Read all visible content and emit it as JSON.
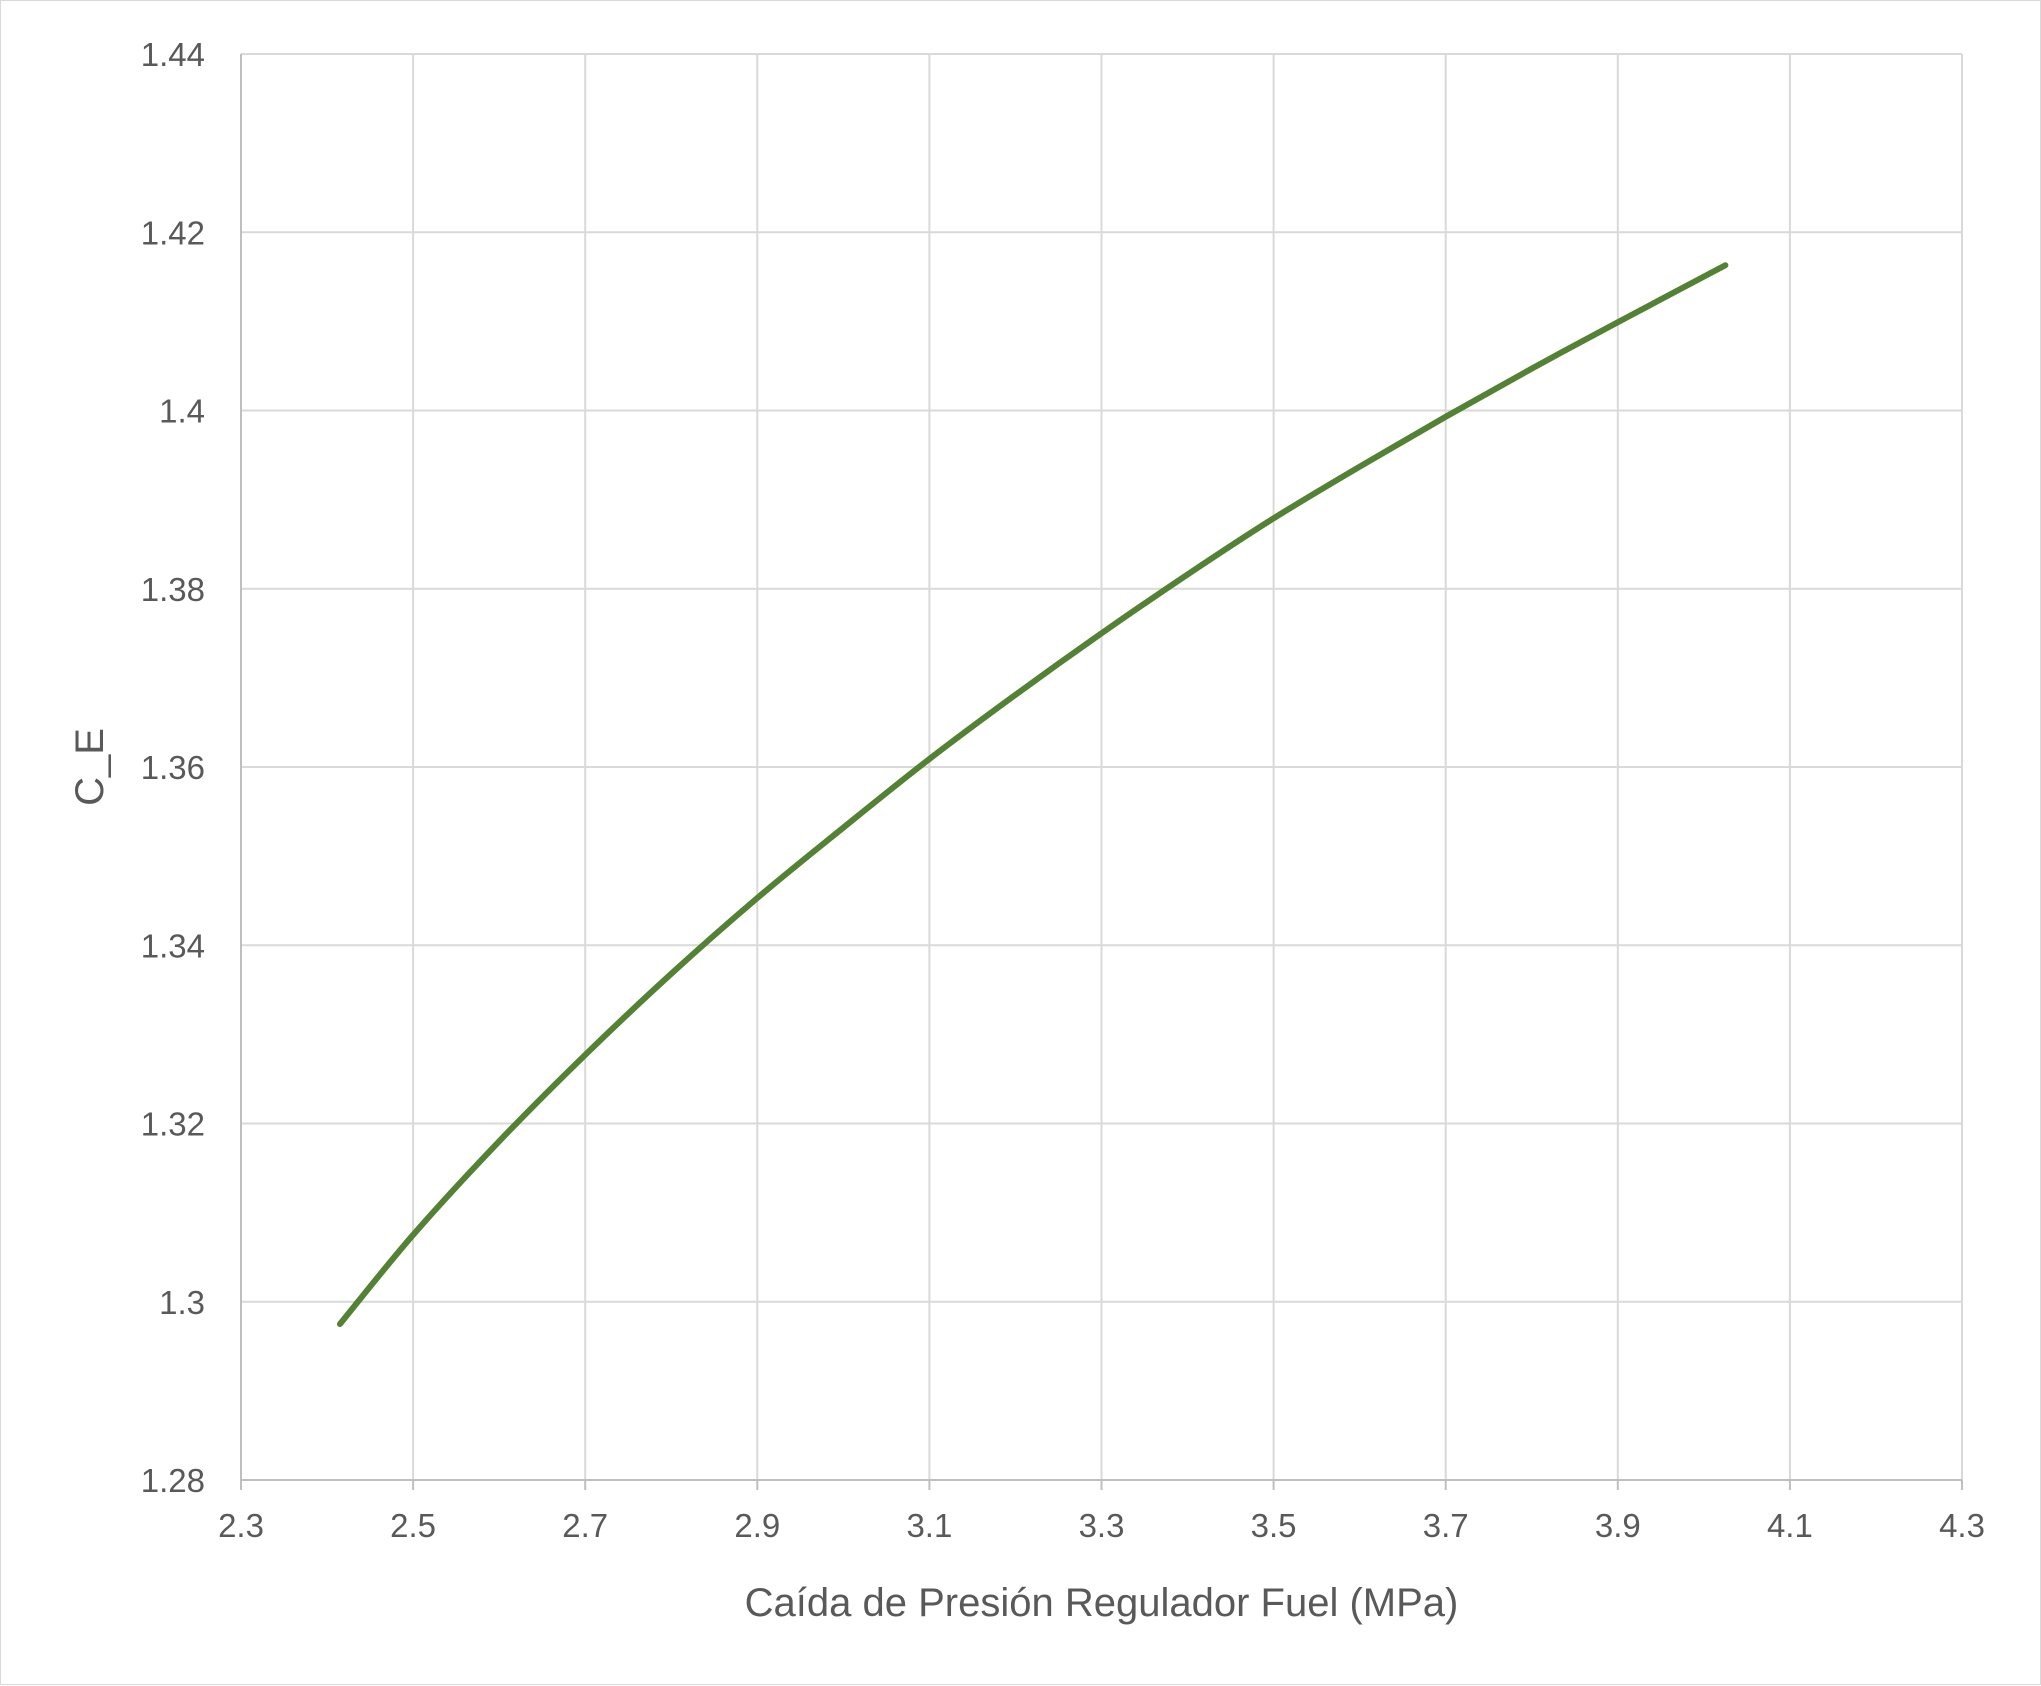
{
  "chart_data": {
    "type": "line",
    "title": "",
    "xlabel": "Caída de Presión Regulador Fuel (MPa)",
    "ylabel": "C_E",
    "xlim": [
      2.3,
      4.3
    ],
    "ylim": [
      1.28,
      1.44
    ],
    "x_ticks": [
      "2.3",
      "2.5",
      "2.7",
      "2.9",
      "3.1",
      "3.3",
      "3.5",
      "3.7",
      "3.9",
      "4.1",
      "4.3"
    ],
    "y_ticks": [
      "1.28",
      "1.3",
      "1.32",
      "1.34",
      "1.36",
      "1.38",
      "1.4",
      "1.42",
      "1.44"
    ],
    "grid": true,
    "legend": "none",
    "series": [
      {
        "color": "#548235",
        "x": [
          2.415,
          2.5,
          2.6,
          2.7,
          2.8,
          2.9,
          3.0,
          3.1,
          3.2,
          3.3,
          3.4,
          3.5,
          3.6,
          3.7,
          3.8,
          3.9,
          4.025
        ],
        "y": [
          1.2975,
          1.3075,
          1.318,
          1.3277,
          1.3368,
          1.3453,
          1.3532,
          1.3609,
          1.3681,
          1.375,
          1.3816,
          1.3879,
          1.3937,
          1.3993,
          1.4047,
          1.4099,
          1.4163
        ]
      }
    ]
  }
}
